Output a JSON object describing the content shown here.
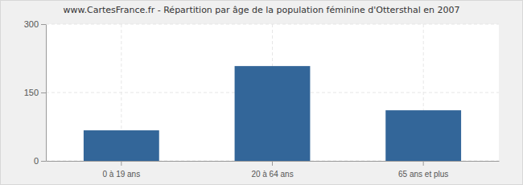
{
  "chart_data": {
    "type": "bar",
    "title": "www.CartesFrance.fr - Répartition par âge de la population féminine d'Ottersthal en 2007",
    "categories": [
      "0 à 19 ans",
      "20 à 64 ans",
      "65 ans et plus"
    ],
    "values": [
      67,
      208,
      111
    ],
    "color": "#336699",
    "ylim": [
      0,
      300
    ],
    "yticks": [
      0,
      150,
      300
    ],
    "grid": true
  }
}
